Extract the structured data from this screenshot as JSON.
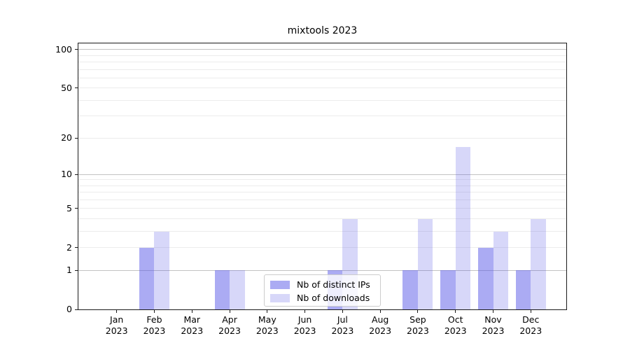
{
  "chart_data": {
    "type": "bar",
    "title": "mixtools 2023",
    "categories_months": [
      "Jan",
      "Feb",
      "Mar",
      "Apr",
      "May",
      "Jun",
      "Jul",
      "Aug",
      "Sep",
      "Oct",
      "Nov",
      "Dec"
    ],
    "categories_year": "2023",
    "series": [
      {
        "name": "Nb of distinct IPs",
        "values": [
          0,
          2,
          0,
          1,
          0,
          0,
          1,
          0,
          1,
          1,
          2,
          1
        ],
        "color": "rgba(88,88,232,0.5)"
      },
      {
        "name": "Nb of downloads",
        "values": [
          0,
          3,
          0,
          1,
          0,
          0,
          4,
          0,
          4,
          17,
          3,
          4
        ],
        "color": "rgba(88,88,232,0.24)"
      }
    ],
    "yscale": "log1p",
    "ylim": [
      0,
      111.7
    ],
    "ytick_values": [
      100,
      50,
      20,
      10,
      5,
      2,
      1,
      0
    ],
    "ytick_labels": [
      "100",
      "50",
      "20",
      "10",
      "5",
      "2",
      "1",
      "0"
    ],
    "grid_major": [
      1,
      10,
      100
    ],
    "grid_minor": [
      2,
      3,
      4,
      5,
      6,
      7,
      8,
      9,
      20,
      30,
      40,
      50,
      60,
      70,
      80,
      90
    ],
    "legend_position": "lower center",
    "xlabel": "",
    "ylabel": ""
  },
  "colors": {
    "bar_distinct_ips": "rgba(88,88,232,0.5)",
    "bar_downloads": "rgba(88,88,232,0.24)",
    "grid_major": "#c2c2c2",
    "grid_minor": "#ececec",
    "spine": "#1a1a1a",
    "text": "#000000",
    "legend_border": "#cccccc",
    "legend_background": "rgba(255,255,255,0.8)"
  }
}
